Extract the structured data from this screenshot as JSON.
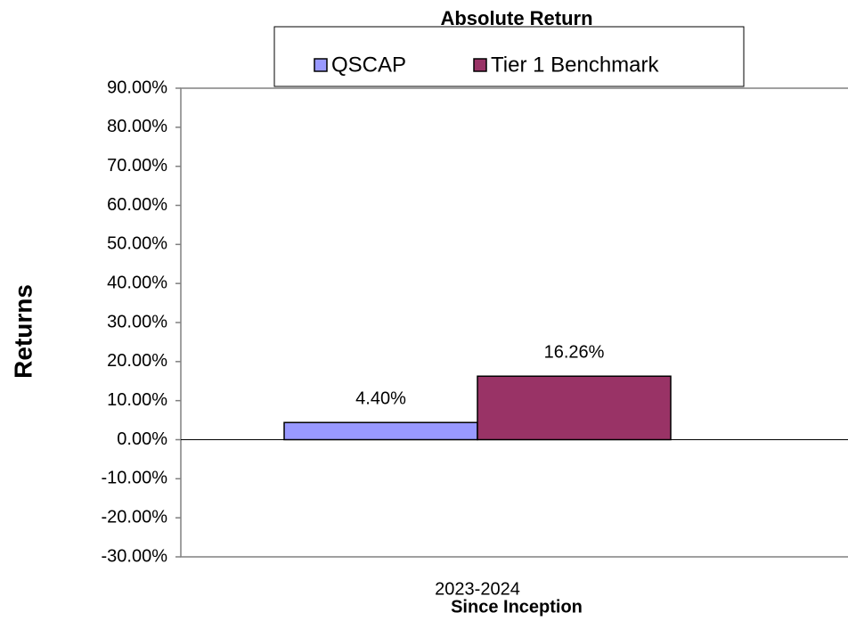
{
  "chart_data": {
    "type": "bar",
    "title": "Absolute Return",
    "categories": [
      "2023-2024"
    ],
    "x_label": "Since Inception",
    "y_label": "Returns",
    "series": [
      {
        "name": "QSCAP",
        "color": "#9999ff",
        "values": [
          4.4
        ],
        "value_labels": [
          "4.40%"
        ]
      },
      {
        "name": "Tier 1 Benchmark",
        "color": "#993366",
        "values": [
          16.26
        ],
        "value_labels": [
          "16.26%"
        ]
      }
    ],
    "ylim": [
      -30,
      90
    ],
    "yticks": [
      {
        "value": -30,
        "label": "-30.00%"
      },
      {
        "value": -20,
        "label": "-20.00%"
      },
      {
        "value": -10,
        "label": "-10.00%"
      },
      {
        "value": 0,
        "label": "0.00%"
      },
      {
        "value": 10,
        "label": "10.00%"
      },
      {
        "value": 20,
        "label": "20.00%"
      },
      {
        "value": 30,
        "label": "30.00%"
      },
      {
        "value": 40,
        "label": "40.00%"
      },
      {
        "value": 50,
        "label": "50.00%"
      },
      {
        "value": 60,
        "label": "60.00%"
      },
      {
        "value": 70,
        "label": "70.00%"
      },
      {
        "value": 80,
        "label": "80.00%"
      },
      {
        "value": 90,
        "label": "90.00%"
      }
    ],
    "legend": "top"
  }
}
